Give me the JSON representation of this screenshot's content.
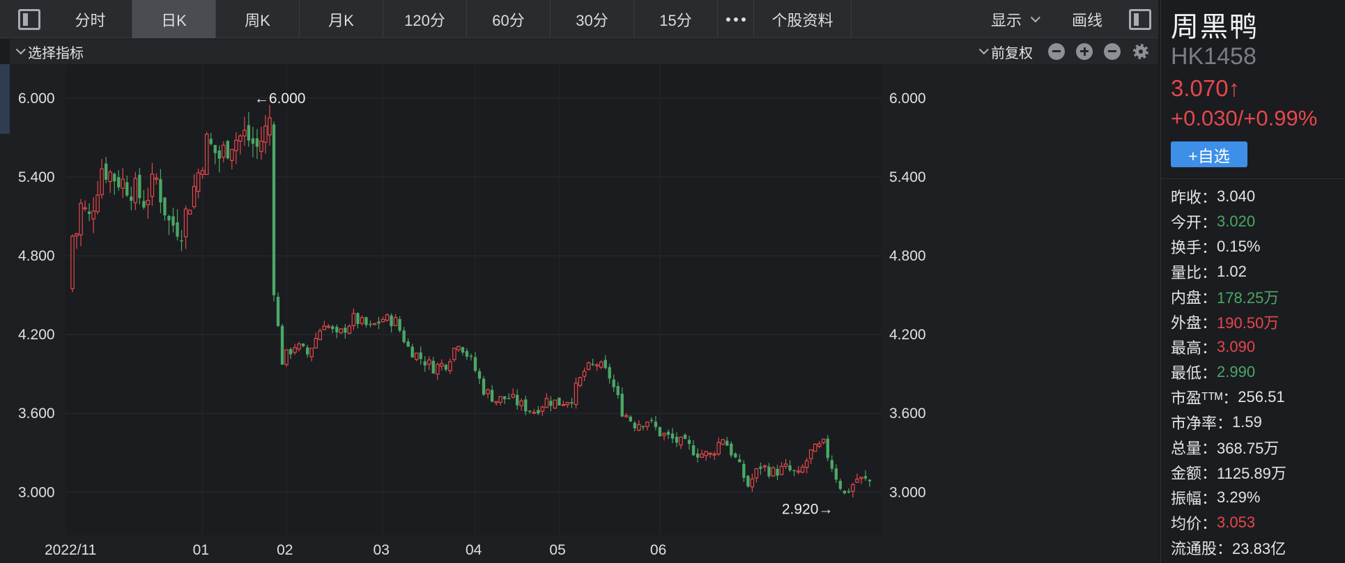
{
  "toolbar": {
    "tabs": [
      "分时",
      "日K",
      "周K",
      "月K",
      "120分",
      "60分",
      "30分",
      "15分"
    ],
    "active_tab": "日K",
    "more_label": "•••",
    "profile_label": "个股资料",
    "display_label": "显示",
    "draw_label": "画线"
  },
  "indicator_bar": {
    "select_label": "选择指标",
    "adjust_label": "前复权"
  },
  "stock": {
    "name": "周黑鸭",
    "code": "HK1458",
    "price": "3.070↑",
    "change": "+0.030/+0.99%",
    "watch_label": "+自选"
  },
  "stats": [
    {
      "label": "昨收：",
      "value": "3.040",
      "color": "neutral"
    },
    {
      "label": "今开：",
      "value": "3.020",
      "color": "down"
    },
    {
      "label": "换手：",
      "value": "0.15%",
      "color": "neutral"
    },
    {
      "label": "量比：",
      "value": "1.02",
      "color": "neutral"
    },
    {
      "label": "内盘：",
      "value": "178.25万",
      "color": "down"
    },
    {
      "label": "外盘：",
      "value": "190.50万",
      "color": "up"
    },
    {
      "label": "最高：",
      "value": "3.090",
      "color": "up"
    },
    {
      "label": "最低：",
      "value": "2.990",
      "color": "down"
    },
    {
      "label": "市盈ᵀᵀᴹ：",
      "value": "256.51",
      "color": "neutral"
    },
    {
      "label": "市净率：",
      "value": "1.59",
      "color": "neutral"
    },
    {
      "label": "总量：",
      "value": "368.75万",
      "color": "neutral"
    },
    {
      "label": "金额：",
      "value": "1125.89万",
      "color": "neutral"
    },
    {
      "label": "振幅：",
      "value": "3.29%",
      "color": "neutral"
    },
    {
      "label": "均价：",
      "value": "3.053",
      "color": "up"
    },
    {
      "label": "流通股：",
      "value": "23.83亿",
      "color": "neutral"
    }
  ],
  "colors": {
    "up": "#e5484d",
    "down": "#4aa866",
    "background": "#1b1c1f",
    "accent": "#3d8fe8"
  },
  "chart_data": {
    "type": "candlestick",
    "y_ticks": [
      "6.000",
      "5.400",
      "4.800",
      "4.200",
      "3.600",
      "3.000"
    ],
    "y_range": [
      2.8,
      6.1
    ],
    "x_labels": [
      "2022/11",
      "01",
      "02",
      "03",
      "04",
      "05",
      "06"
    ],
    "annotations": {
      "high": "←6.000",
      "low": "2.920→"
    },
    "grid": true,
    "waypoints": [
      [
        0,
        4.78
      ],
      [
        2,
        5.18
      ],
      [
        4,
        5.08
      ],
      [
        7,
        5.48
      ],
      [
        10,
        5.4
      ],
      [
        14,
        5.32
      ],
      [
        17,
        5.22
      ],
      [
        20,
        5.38
      ],
      [
        23,
        5.05
      ],
      [
        26,
        5.02
      ],
      [
        29,
        5.32
      ],
      [
        32,
        5.66
      ],
      [
        35,
        5.55
      ],
      [
        38,
        5.68
      ],
      [
        41,
        5.72
      ],
      [
        44,
        5.62
      ],
      [
        47,
        5.82
      ],
      [
        48,
        4.5
      ],
      [
        50,
        4.0
      ],
      [
        53,
        4.12
      ],
      [
        56,
        4.05
      ],
      [
        60,
        4.3
      ],
      [
        63,
        4.18
      ],
      [
        67,
        4.32
      ],
      [
        71,
        4.25
      ],
      [
        74,
        4.32
      ],
      [
        77,
        4.3
      ],
      [
        80,
        4.1
      ],
      [
        83,
        4.02
      ],
      [
        86,
        3.95
      ],
      [
        89,
        3.98
      ],
      [
        92,
        4.15
      ],
      [
        95,
        4.0
      ],
      [
        98,
        3.78
      ],
      [
        101,
        3.7
      ],
      [
        104,
        3.72
      ],
      [
        107,
        3.66
      ],
      [
        110,
        3.62
      ],
      [
        113,
        3.7
      ],
      [
        116,
        3.68
      ],
      [
        119,
        3.72
      ],
      [
        122,
        3.92
      ],
      [
        125,
        3.98
      ],
      [
        128,
        3.88
      ],
      [
        131,
        3.62
      ],
      [
        134,
        3.52
      ],
      [
        137,
        3.55
      ],
      [
        140,
        3.45
      ],
      [
        143,
        3.4
      ],
      [
        146,
        3.36
      ],
      [
        149,
        3.3
      ],
      [
        152,
        3.28
      ],
      [
        155,
        3.42
      ],
      [
        158,
        3.25
      ],
      [
        161,
        3.05
      ],
      [
        164,
        3.2
      ],
      [
        167,
        3.15
      ],
      [
        170,
        3.18
      ],
      [
        173,
        3.12
      ],
      [
        176,
        3.3
      ],
      [
        179,
        3.36
      ],
      [
        182,
        3.12
      ],
      [
        184,
        2.98
      ],
      [
        187,
        3.1
      ],
      [
        190,
        3.08
      ]
    ]
  }
}
